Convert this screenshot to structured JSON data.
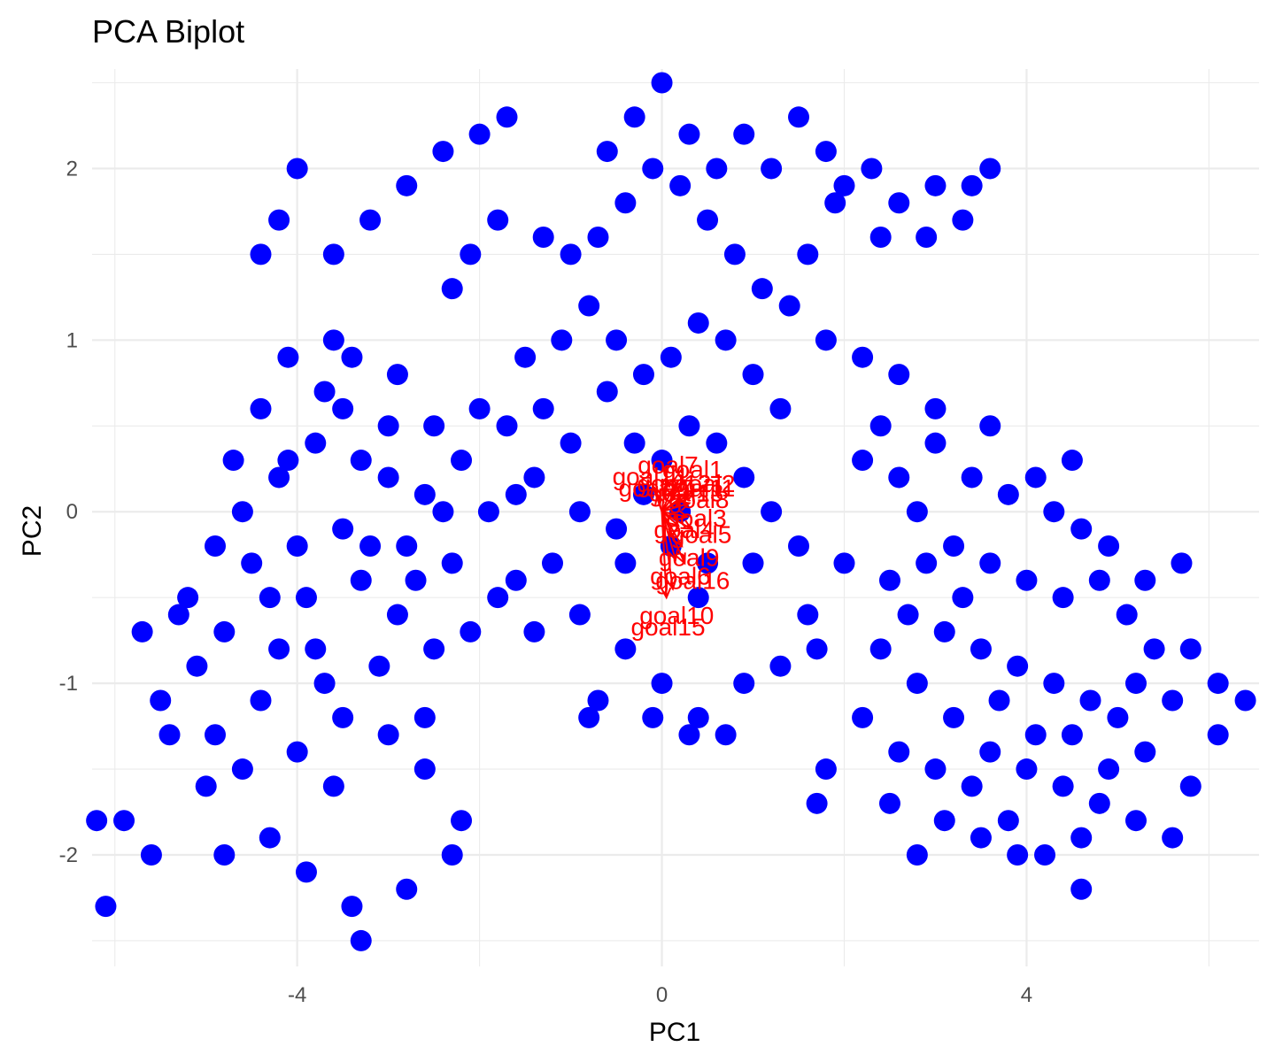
{
  "chart_data": {
    "type": "scatter",
    "title": "PCA Biplot",
    "xlabel": "PC1",
    "ylabel": "PC2",
    "xlim": [
      -6.25,
      6.55
    ],
    "ylim": [
      -2.65,
      2.58
    ],
    "x_ticks": [
      -4,
      0,
      4
    ],
    "x_tick_labels": [
      "-4",
      "0",
      "4"
    ],
    "x_minor_ticks": [
      -6,
      -2,
      2,
      6
    ],
    "y_ticks": [
      -2,
      -1,
      0,
      1,
      2
    ],
    "y_tick_labels": [
      "-2",
      "-1",
      "0",
      "1",
      "2"
    ],
    "y_minor_ticks": [
      -2.5,
      -1.5,
      -0.5,
      0.5,
      1.5,
      2.5
    ],
    "grid": true,
    "point_color": "#0000FF",
    "loading_color": "#FF0000",
    "scores": {
      "color": "#0000FF",
      "points": [
        [
          -3.0,
          0.5
        ],
        [
          -3.8,
          0.4
        ],
        [
          -4.1,
          0.3
        ],
        [
          -3.5,
          0.6
        ],
        [
          -2.6,
          0.1
        ],
        [
          -3.2,
          -0.2
        ],
        [
          -4.5,
          -0.3
        ],
        [
          -3.9,
          -0.5
        ],
        [
          -3.3,
          -0.4
        ],
        [
          -2.9,
          -0.6
        ],
        [
          -4.2,
          -0.8
        ],
        [
          -4.8,
          -0.7
        ],
        [
          -5.1,
          -0.9
        ],
        [
          -4.4,
          -1.1
        ],
        [
          -3.7,
          -1.0
        ],
        [
          -3.1,
          -0.9
        ],
        [
          -4.0,
          -1.4
        ],
        [
          -4.6,
          -1.5
        ],
        [
          -3.6,
          -1.6
        ],
        [
          -4.3,
          -1.9
        ],
        [
          -3.9,
          -2.1
        ],
        [
          -3.4,
          -2.3
        ],
        [
          -5.4,
          -1.3
        ],
        [
          -5.9,
          -1.8
        ],
        [
          -6.1,
          -2.3
        ],
        [
          -6.2,
          -1.8
        ],
        [
          -5.7,
          -0.7
        ],
        [
          -5.2,
          -0.5
        ],
        [
          -4.9,
          -0.2
        ],
        [
          -4.6,
          0.0
        ],
        [
          -4.2,
          0.2
        ],
        [
          -3.7,
          0.7
        ],
        [
          -3.4,
          0.9
        ],
        [
          -2.9,
          0.8
        ],
        [
          -2.5,
          0.5
        ],
        [
          -2.2,
          0.3
        ],
        [
          -1.9,
          0.0
        ],
        [
          -2.3,
          -0.3
        ],
        [
          -2.7,
          -0.4
        ],
        [
          -4.7,
          0.3
        ],
        [
          -4.4,
          0.6
        ],
        [
          -4.1,
          0.9
        ],
        [
          -3.6,
          1.0
        ],
        [
          -4.0,
          2.0
        ],
        [
          -4.2,
          1.7
        ],
        [
          -4.4,
          1.5
        ],
        [
          -3.6,
          1.5
        ],
        [
          -3.2,
          1.7
        ],
        [
          -2.8,
          1.9
        ],
        [
          -2.4,
          2.1
        ],
        [
          -2.0,
          2.2
        ],
        [
          -1.7,
          2.3
        ],
        [
          -1.8,
          1.7
        ],
        [
          -2.1,
          1.5
        ],
        [
          -2.3,
          1.3
        ],
        [
          -3.5,
          -0.1
        ],
        [
          -3.8,
          -0.8
        ],
        [
          -2.6,
          -1.2
        ],
        [
          -2.6,
          -1.5
        ],
        [
          -2.2,
          -1.8
        ],
        [
          -2.3,
          -2.0
        ],
        [
          -2.8,
          -2.2
        ],
        [
          -3.3,
          -2.5
        ],
        [
          -4.8,
          -2.0
        ],
        [
          -5.0,
          -1.6
        ],
        [
          -5.5,
          -1.1
        ],
        [
          -5.6,
          -2.0
        ],
        [
          -2.5,
          -0.8
        ],
        [
          -2.1,
          -0.7
        ],
        [
          -1.8,
          -0.5
        ],
        [
          -3.0,
          -1.3
        ],
        [
          -3.5,
          -1.2
        ],
        [
          -4.9,
          -1.3
        ],
        [
          -5.3,
          -0.6
        ],
        [
          -4.0,
          -0.2
        ],
        [
          -3.0,
          0.2
        ],
        [
          -2.4,
          0.0
        ],
        [
          -3.3,
          0.3
        ],
        [
          -4.3,
          -0.5
        ],
        [
          -2.8,
          -0.2
        ],
        [
          -1.5,
          0.9
        ],
        [
          -1.3,
          0.6
        ],
        [
          -1.0,
          0.4
        ],
        [
          -1.4,
          0.2
        ],
        [
          -1.7,
          0.5
        ],
        [
          -1.1,
          1.0
        ],
        [
          -0.8,
          1.2
        ],
        [
          -0.5,
          1.0
        ],
        [
          -0.2,
          0.8
        ],
        [
          0.1,
          0.9
        ],
        [
          0.4,
          1.1
        ],
        [
          0.7,
          1.0
        ],
        [
          1.0,
          0.8
        ],
        [
          1.3,
          0.6
        ],
        [
          1.1,
          1.3
        ],
        [
          0.8,
          1.5
        ],
        [
          0.5,
          1.7
        ],
        [
          0.2,
          1.9
        ],
        [
          -0.1,
          2.0
        ],
        [
          -0.4,
          1.8
        ],
        [
          -0.7,
          1.6
        ],
        [
          -1.0,
          1.5
        ],
        [
          -1.3,
          1.6
        ],
        [
          -0.6,
          2.1
        ],
        [
          -0.3,
          2.3
        ],
        [
          0.0,
          2.5
        ],
        [
          0.3,
          2.2
        ],
        [
          0.6,
          2.0
        ],
        [
          0.9,
          2.2
        ],
        [
          1.2,
          2.0
        ],
        [
          1.5,
          2.3
        ],
        [
          1.8,
          2.1
        ],
        [
          2.0,
          1.9
        ],
        [
          2.3,
          2.0
        ],
        [
          2.6,
          1.8
        ],
        [
          3.0,
          1.9
        ],
        [
          3.4,
          1.9
        ],
        [
          3.6,
          2.0
        ],
        [
          3.3,
          1.7
        ],
        [
          2.9,
          1.6
        ],
        [
          2.4,
          1.6
        ],
        [
          1.9,
          1.8
        ],
        [
          1.6,
          1.5
        ],
        [
          1.4,
          1.2
        ],
        [
          1.8,
          1.0
        ],
        [
          2.2,
          0.9
        ],
        [
          2.6,
          0.8
        ],
        [
          0.3,
          0.5
        ],
        [
          0.0,
          0.3
        ],
        [
          -0.3,
          0.4
        ],
        [
          -0.6,
          0.7
        ],
        [
          0.6,
          0.4
        ],
        [
          0.9,
          0.2
        ],
        [
          1.2,
          0.0
        ],
        [
          -0.9,
          0.0
        ],
        [
          -0.5,
          -0.1
        ],
        [
          0.1,
          -0.2
        ],
        [
          0.5,
          -0.3
        ],
        [
          1.0,
          -0.3
        ],
        [
          1.5,
          -0.2
        ],
        [
          2.0,
          -0.3
        ],
        [
          2.5,
          -0.4
        ],
        [
          -1.2,
          -0.3
        ],
        [
          -1.6,
          -0.4
        ],
        [
          -0.9,
          -0.6
        ],
        [
          -1.4,
          -0.7
        ],
        [
          -0.4,
          -0.8
        ],
        [
          -0.7,
          -1.1
        ],
        [
          -0.8,
          -1.2
        ],
        [
          0.0,
          -1.0
        ],
        [
          0.4,
          -1.2
        ],
        [
          0.9,
          -1.0
        ],
        [
          0.7,
          -1.3
        ],
        [
          0.3,
          -1.3
        ],
        [
          -0.1,
          -1.2
        ],
        [
          1.6,
          -0.6
        ],
        [
          1.3,
          -0.9
        ],
        [
          1.7,
          -0.8
        ],
        [
          2.2,
          0.3
        ],
        [
          2.6,
          0.2
        ],
        [
          3.0,
          0.4
        ],
        [
          3.4,
          0.2
        ],
        [
          3.8,
          0.1
        ],
        [
          4.1,
          0.2
        ],
        [
          4.3,
          0.0
        ],
        [
          4.6,
          -0.1
        ],
        [
          2.8,
          0.0
        ],
        [
          3.2,
          -0.2
        ],
        [
          3.6,
          -0.3
        ],
        [
          4.0,
          -0.4
        ],
        [
          4.4,
          -0.5
        ],
        [
          4.8,
          -0.4
        ],
        [
          5.1,
          -0.6
        ],
        [
          5.4,
          -0.8
        ],
        [
          5.2,
          -1.0
        ],
        [
          5.0,
          -1.2
        ],
        [
          4.7,
          -1.1
        ],
        [
          4.3,
          -1.0
        ],
        [
          3.9,
          -0.9
        ],
        [
          3.5,
          -0.8
        ],
        [
          3.1,
          -0.7
        ],
        [
          2.7,
          -0.6
        ],
        [
          2.4,
          -0.8
        ],
        [
          2.8,
          -1.0
        ],
        [
          3.2,
          -1.2
        ],
        [
          3.6,
          -1.4
        ],
        [
          4.0,
          -1.5
        ],
        [
          4.4,
          -1.6
        ],
        [
          4.8,
          -1.7
        ],
        [
          5.2,
          -1.8
        ],
        [
          4.6,
          -1.9
        ],
        [
          4.2,
          -2.0
        ],
        [
          3.8,
          -1.8
        ],
        [
          3.4,
          -1.6
        ],
        [
          3.0,
          -1.5
        ],
        [
          2.6,
          -1.4
        ],
        [
          2.2,
          -1.2
        ],
        [
          1.8,
          -1.5
        ],
        [
          1.7,
          -1.7
        ],
        [
          2.8,
          -2.0
        ],
        [
          3.9,
          -2.0
        ],
        [
          4.6,
          -2.2
        ],
        [
          5.7,
          -0.3
        ],
        [
          5.8,
          -0.8
        ],
        [
          5.6,
          -1.1
        ],
        [
          6.1,
          -1.0
        ],
        [
          6.4,
          -1.1
        ],
        [
          6.1,
          -1.3
        ],
        [
          5.8,
          -1.6
        ],
        [
          5.6,
          -1.9
        ],
        [
          5.3,
          -1.4
        ],
        [
          4.9,
          -0.2
        ],
        [
          5.3,
          -0.4
        ],
        [
          4.5,
          0.3
        ],
        [
          3.6,
          0.5
        ],
        [
          3.0,
          0.6
        ],
        [
          2.4,
          0.5
        ],
        [
          2.9,
          -0.3
        ],
        [
          3.3,
          -0.5
        ],
        [
          3.7,
          -1.1
        ],
        [
          4.1,
          -1.3
        ],
        [
          4.5,
          -1.3
        ],
        [
          4.9,
          -1.5
        ],
        [
          3.5,
          -1.9
        ],
        [
          3.1,
          -1.8
        ],
        [
          2.5,
          -1.7
        ],
        [
          -0.2,
          0.1
        ],
        [
          0.2,
          0.0
        ],
        [
          -0.4,
          -0.3
        ],
        [
          0.4,
          -0.5
        ],
        [
          -2.0,
          0.6
        ],
        [
          -1.6,
          0.1
        ]
      ]
    },
    "loadings": {
      "color": "#FF0000",
      "arrows": [
        {
          "label": "goal1",
          "x": 0.25,
          "y": 0.18
        },
        {
          "label": "goal2",
          "x": 0.35,
          "y": 0.12
        },
        {
          "label": "goal3",
          "x": 0.28,
          "y": -0.03
        },
        {
          "label": "goal4",
          "x": 0.18,
          "y": -0.08
        },
        {
          "label": "goal5",
          "x": 0.32,
          "y": -0.1
        },
        {
          "label": "goal6",
          "x": 0.15,
          "y": -0.28
        },
        {
          "label": "goal7",
          "x": 0.05,
          "y": 0.2
        },
        {
          "label": "goal8",
          "x": 0.3,
          "y": 0.05
        },
        {
          "label": "goal9",
          "x": 0.22,
          "y": -0.2
        },
        {
          "label": "goal10",
          "x": 0.12,
          "y": -0.45
        },
        {
          "label": "goal11",
          "x": 0.3,
          "y": 0.1
        },
        {
          "label": "goal12",
          "x": 0.1,
          "y": 0.12
        },
        {
          "label": "goal13",
          "x": 0.2,
          "y": 0.08
        },
        {
          "label": "goal14",
          "x": -0.1,
          "y": 0.15
        },
        {
          "label": "goal15",
          "x": 0.05,
          "y": -0.5
        },
        {
          "label": "goal16",
          "x": 0.25,
          "y": -0.3
        },
        {
          "label": "goal17",
          "x": -0.05,
          "y": 0.1
        }
      ],
      "label_scale": 1.35
    }
  }
}
